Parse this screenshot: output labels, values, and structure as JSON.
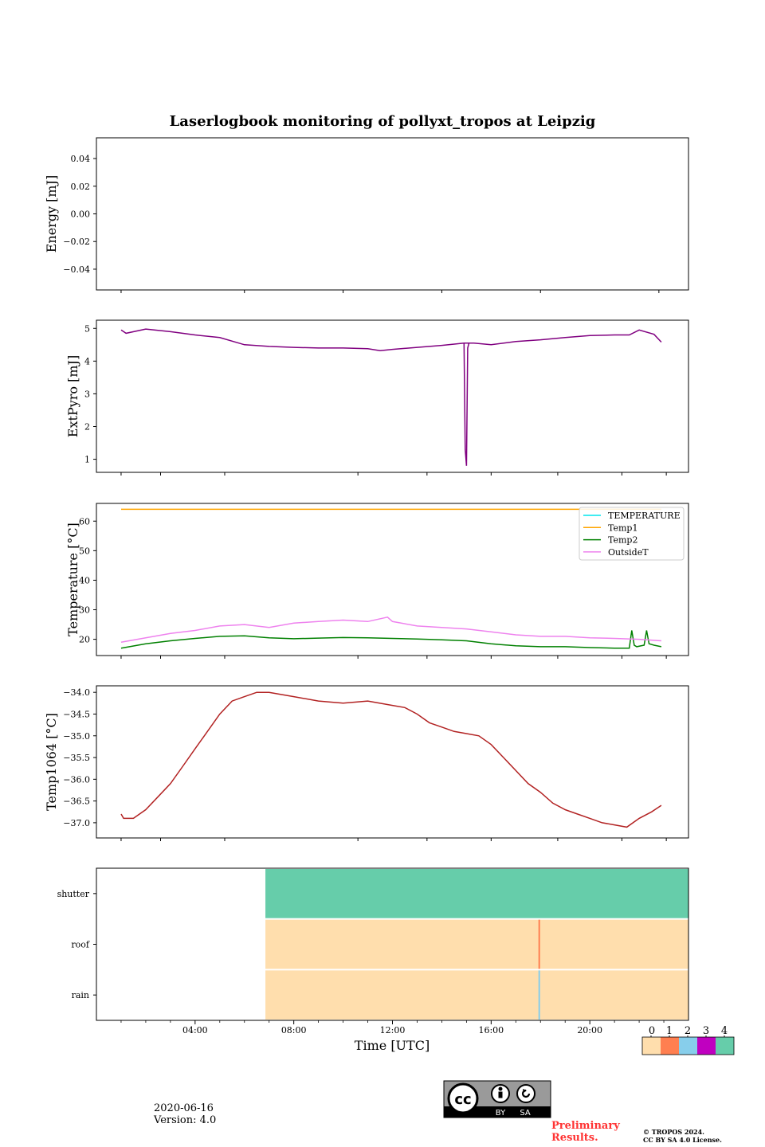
{
  "chart_data": {
    "type": "multi-panel",
    "title": "Laserlogbook monitoring of pollyxt_tropos at Leipzig",
    "xlabel": "Time [UTC]",
    "x_ticks": [
      "04:00",
      "08:00",
      "12:00",
      "16:00",
      "20:00"
    ],
    "panels": [
      {
        "type": "line",
        "ylabel": "Energy [mJ]",
        "ylim": [
          -0.055,
          0.055
        ],
        "y_ticks": [
          "0.04",
          "0.02",
          "0.00",
          "−0.02",
          "−0.04"
        ],
        "y_tick_values": [
          0.04,
          0.02,
          0.0,
          -0.02,
          -0.04
        ],
        "series": []
      },
      {
        "type": "line",
        "ylabel": "ExtPyro [mJ]",
        "ylim": [
          0.6,
          5.25
        ],
        "y_ticks": [
          "5",
          "4",
          "3",
          "2",
          "1"
        ],
        "y_tick_values": [
          5,
          4,
          3,
          2,
          1
        ],
        "series": [
          {
            "name": "ExtPyro",
            "color": "#800080",
            "x": [
              1.0,
              1.2,
              2.0,
              3.0,
              4.0,
              5.0,
              6.0,
              7.0,
              8.0,
              9.0,
              10.0,
              11.0,
              11.5,
              12.0,
              13.0,
              14.0,
              14.9,
              15.3,
              16.0,
              17.0,
              18.0,
              19.0,
              20.0,
              21.0,
              21.6,
              22.0,
              22.6,
              22.9
            ],
            "y": [
              4.95,
              4.85,
              4.98,
              4.9,
              4.8,
              4.72,
              4.5,
              4.45,
              4.42,
              4.4,
              4.4,
              4.38,
              4.32,
              4.36,
              4.42,
              4.48,
              4.55,
              4.55,
              4.5,
              4.6,
              4.65,
              4.72,
              4.78,
              4.8,
              4.8,
              4.95,
              4.82,
              4.58
            ],
            "spike": {
              "x": [
                14.9,
                14.95,
                15.0,
                15.05,
                15.1
              ],
              "y": [
                4.55,
                1.3,
                0.8,
                4.4,
                4.55
              ]
            }
          }
        ]
      },
      {
        "type": "line",
        "ylabel": "Temperature [°C]",
        "ylim": [
          14.5,
          66.0
        ],
        "y_ticks": [
          "60",
          "50",
          "40",
          "30",
          "20"
        ],
        "y_tick_values": [
          60,
          50,
          40,
          30,
          20
        ],
        "legend": "top-right",
        "series": [
          {
            "name": "TEMPERATURE",
            "color": "#00e5ee",
            "x": [],
            "y": []
          },
          {
            "name": "Temp1",
            "color": "#ffa500",
            "x": [
              1.0,
              22.9
            ],
            "y": [
              64.0,
              64.0
            ]
          },
          {
            "name": "Temp2",
            "color": "#008000",
            "x": [
              1.0,
              2.0,
              3.0,
              4.0,
              5.0,
              6.0,
              7.0,
              8.0,
              9.0,
              10.0,
              11.0,
              12.0,
              13.0,
              14.0,
              15.0,
              16.0,
              17.0,
              18.0,
              19.0,
              20.0,
              21.0,
              21.6,
              21.7,
              21.8,
              21.9,
              22.2,
              22.3,
              22.4,
              22.6,
              22.9
            ],
            "y": [
              17.0,
              18.5,
              19.5,
              20.3,
              21.0,
              21.2,
              20.5,
              20.2,
              20.4,
              20.6,
              20.5,
              20.3,
              20.1,
              19.8,
              19.5,
              18.5,
              17.8,
              17.5,
              17.5,
              17.2,
              17.0,
              17.0,
              23.0,
              18.0,
              17.5,
              18.0,
              23.0,
              18.5,
              18.0,
              17.5
            ]
          },
          {
            "name": "OutsideT",
            "color": "#ee82ee",
            "x": [
              1.0,
              2.0,
              3.0,
              4.0,
              5.0,
              6.0,
              7.0,
              8.0,
              9.0,
              10.0,
              11.0,
              11.8,
              12.0,
              13.0,
              14.0,
              15.0,
              16.0,
              17.0,
              18.0,
              19.0,
              20.0,
              21.0,
              22.0,
              22.9
            ],
            "y": [
              19.0,
              20.5,
              22.0,
              23.0,
              24.5,
              25.0,
              24.0,
              25.5,
              26.0,
              26.5,
              26.0,
              27.5,
              26.0,
              24.5,
              24.0,
              23.5,
              22.5,
              21.5,
              21.0,
              21.0,
              20.5,
              20.3,
              20.0,
              19.5
            ]
          }
        ]
      },
      {
        "type": "line",
        "ylabel": "Temp1064 [°C]",
        "ylim": [
          -37.35,
          -33.85
        ],
        "y_ticks": [
          "−34.0",
          "−34.5",
          "−35.0",
          "−35.5",
          "−36.0",
          "−36.5",
          "−37.0"
        ],
        "y_tick_values": [
          -34.0,
          -34.5,
          -35.0,
          -35.5,
          -36.0,
          -36.5,
          -37.0
        ],
        "series": [
          {
            "name": "Temp1064",
            "color": "#b22222",
            "x": [
              1.0,
              1.1,
              1.5,
              2.0,
              2.5,
              3.0,
              3.5,
              4.0,
              4.5,
              5.0,
              5.5,
              6.0,
              6.5,
              7.0,
              8.0,
              9.0,
              10.0,
              11.0,
              12.0,
              12.5,
              13.0,
              13.5,
              14.0,
              14.5,
              15.0,
              15.5,
              16.0,
              16.5,
              17.0,
              17.5,
              18.0,
              18.5,
              19.0,
              19.5,
              20.0,
              20.5,
              21.0,
              21.5,
              22.0,
              22.5,
              22.9
            ],
            "y": [
              -36.8,
              -36.9,
              -36.9,
              -36.7,
              -36.4,
              -36.1,
              -35.7,
              -35.3,
              -34.9,
              -34.5,
              -34.2,
              -34.1,
              -34.0,
              -34.0,
              -34.1,
              -34.2,
              -34.25,
              -34.2,
              -34.3,
              -34.35,
              -34.5,
              -34.7,
              -34.8,
              -34.9,
              -34.95,
              -35.0,
              -35.2,
              -35.5,
              -35.8,
              -36.1,
              -36.3,
              -36.55,
              -36.7,
              -36.8,
              -36.9,
              -37.0,
              -37.05,
              -37.1,
              -36.9,
              -36.75,
              -36.6
            ]
          }
        ]
      },
      {
        "type": "status-raster",
        "rows": [
          "shutter",
          "roof",
          "rain"
        ],
        "data_start": 6.85,
        "data_end": 24.0,
        "row_fill_codes": [
          4,
          0,
          0
        ],
        "events": [
          {
            "row": "roof",
            "x": 17.95,
            "code": 1
          },
          {
            "row": "rain",
            "x": 17.95,
            "code": 2
          }
        ],
        "colorbar": {
          "labels": [
            "0",
            "1",
            "2",
            "3",
            "4"
          ],
          "colors": [
            "#ffdead",
            "#ff7f50",
            "#87ceeb",
            "#c000c0",
            "#66cdaa"
          ]
        }
      }
    ]
  },
  "footer": {
    "date": "2020-06-16",
    "version": "Version: 4.0",
    "cc_label": "cc",
    "by_label": "BY",
    "sa_label": "SA",
    "preliminary_line1": "Preliminary",
    "preliminary_line2": "Results.",
    "copyright_line1": "© TROPOS 2024.",
    "copyright_line2": "CC BY SA 4.0 License."
  }
}
